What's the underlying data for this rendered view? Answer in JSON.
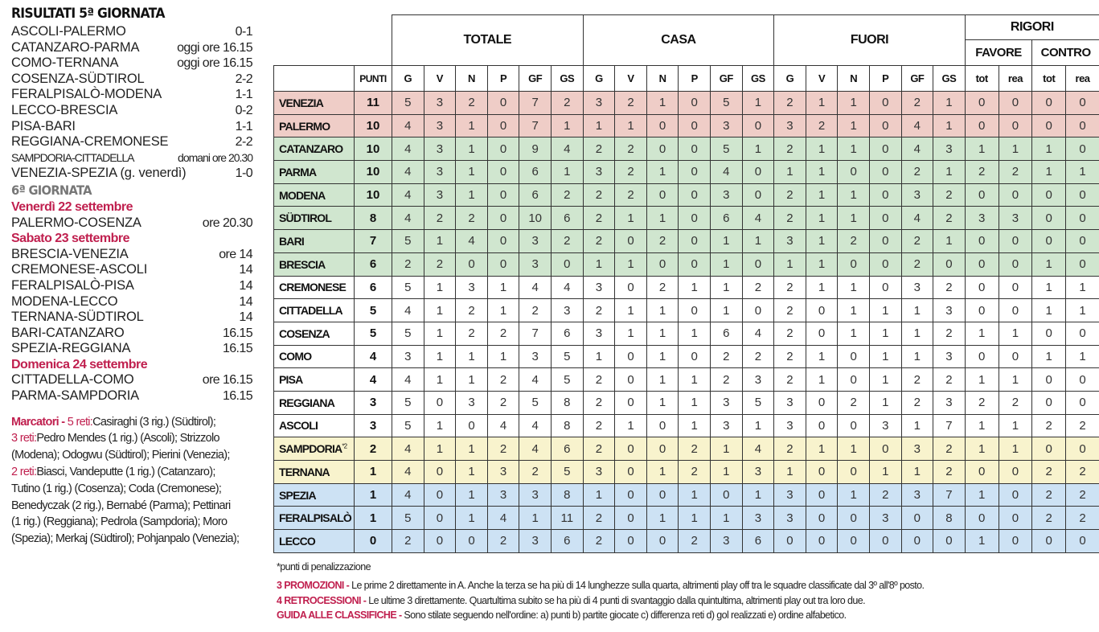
{
  "results": {
    "title": "RISULTATI 5ª GIORNATA",
    "matches": [
      {
        "match": "ASCOLI-PALERMO",
        "score": "0-1"
      },
      {
        "match": "CATANZARO-PARMA",
        "score": "oggi ore 16.15"
      },
      {
        "match": "COMO-TERNANA",
        "score": "oggi ore 16.15"
      },
      {
        "match": "COSENZA-SÜDTIROL",
        "score": "2-2"
      },
      {
        "match": "FERALPISALÒ-MODENA",
        "score": "1-1"
      },
      {
        "match": "LECCO-BRESCIA",
        "score": "0-2"
      },
      {
        "match": "PISA-BARI",
        "score": "1-1"
      },
      {
        "match": "REGGIANA-CREMONESE",
        "score": "2-2"
      },
      {
        "match": "SAMPDORIA-CITTADELLA",
        "score": "domani ore 20.30"
      },
      {
        "match": "VENEZIA-SPEZIA (g. venerdì)",
        "score": "1-0"
      }
    ]
  },
  "next": {
    "title": "6ª GIORNATA",
    "days": [
      {
        "day": "Venerdì 22 settembre",
        "matches": [
          {
            "match": "PALERMO-COSENZA",
            "time": "ore 20.30"
          }
        ]
      },
      {
        "day": "Sabato 23 settembre",
        "matches": [
          {
            "match": "BRESCIA-VENEZIA",
            "time": "ore 14"
          },
          {
            "match": "CREMONESE-ASCOLI",
            "time": "14"
          },
          {
            "match": "FERALPISALÒ-PISA",
            "time": "14"
          },
          {
            "match": "MODENA-LECCO",
            "time": "14"
          },
          {
            "match": "TERNANA-SÜDTIROL",
            "time": "14"
          },
          {
            "match": "BARI-CATANZARO",
            "time": "16.15"
          },
          {
            "match": "SPEZIA-REGGIANA",
            "time": "16.15"
          }
        ]
      },
      {
        "day": "Domenica 24 settembre",
        "matches": [
          {
            "match": "CITTADELLA-COMO",
            "time": "ore 16.15"
          },
          {
            "match": "PARMA-SAMPDORIA",
            "time": "16.15"
          }
        ]
      }
    ]
  },
  "scorers": {
    "label": "Marcatori - ",
    "groups": [
      {
        "goals": "5 reti:",
        "text": "Casiraghi (3 rig.) (Südtirol);"
      },
      {
        "goals": "3 reti:",
        "text": "Pedro Mendes (1 rig.) (Ascoli); Strizzolo (Modena); Odogwu (Südtirol); Pierini (Venezia);"
      },
      {
        "goals": "2 reti:",
        "text": "Biasci, Vandeputte (1 rig.) (Catanzaro); Tutino (1 rig.) (Cosenza); Coda (Cremonese); Benedyczak (2 rig.), Bernabé (Parma); Pettinari (1 rig.) (Reggiana); Pedrola (Sampdoria); Moro (Spezia); Merkaj (Südtirol); Pohjanpalo (Venezia);"
      }
    ]
  },
  "table": {
    "groups": [
      "TOTALE",
      "CASA",
      "FUORI",
      "RIGORI"
    ],
    "subgroups": [
      "FAVORE",
      "CONTRO"
    ],
    "columns": [
      "PUNTI",
      "G",
      "V",
      "N",
      "P",
      "GF",
      "GS",
      "G",
      "V",
      "N",
      "P",
      "GF",
      "GS",
      "G",
      "V",
      "N",
      "P",
      "GF",
      "GS",
      "tot",
      "rea",
      "tot",
      "rea"
    ],
    "zone_colors": {
      "red": "#efcdc7",
      "green": "#d0e6cf",
      "yellow": "#f8f3cd",
      "blue": "#cde2f4"
    },
    "rows": [
      {
        "team": "VENEZIA",
        "pts": 11,
        "zone": "red",
        "v": [
          5,
          3,
          2,
          0,
          7,
          2,
          3,
          2,
          1,
          0,
          5,
          1,
          2,
          1,
          1,
          0,
          2,
          1,
          0,
          0,
          0,
          0
        ]
      },
      {
        "team": "PALERMO",
        "pts": 10,
        "zone": "red",
        "v": [
          4,
          3,
          1,
          0,
          7,
          1,
          1,
          1,
          0,
          0,
          3,
          0,
          3,
          2,
          1,
          0,
          4,
          1,
          0,
          0,
          0,
          0
        ]
      },
      {
        "team": "CATANZARO",
        "pts": 10,
        "zone": "green",
        "v": [
          4,
          3,
          1,
          0,
          9,
          4,
          2,
          2,
          0,
          0,
          5,
          1,
          2,
          1,
          1,
          0,
          4,
          3,
          1,
          1,
          1,
          0
        ]
      },
      {
        "team": "PARMA",
        "pts": 10,
        "zone": "green",
        "v": [
          4,
          3,
          1,
          0,
          6,
          1,
          3,
          2,
          1,
          0,
          4,
          0,
          1,
          1,
          0,
          0,
          2,
          1,
          2,
          2,
          1,
          1
        ]
      },
      {
        "team": "MODENA",
        "pts": 10,
        "zone": "green",
        "v": [
          4,
          3,
          1,
          0,
          6,
          2,
          2,
          2,
          0,
          0,
          3,
          0,
          2,
          1,
          1,
          0,
          3,
          2,
          0,
          0,
          0,
          0
        ]
      },
      {
        "team": "SÜDTIROL",
        "pts": 8,
        "zone": "green",
        "v": [
          4,
          2,
          2,
          0,
          10,
          6,
          2,
          1,
          1,
          0,
          6,
          4,
          2,
          1,
          1,
          0,
          4,
          2,
          3,
          3,
          0,
          0
        ]
      },
      {
        "team": "BARI",
        "pts": 7,
        "zone": "green",
        "v": [
          5,
          1,
          4,
          0,
          3,
          2,
          2,
          0,
          2,
          0,
          1,
          1,
          3,
          1,
          2,
          0,
          2,
          1,
          0,
          0,
          0,
          0
        ]
      },
      {
        "team": "BRESCIA",
        "pts": 6,
        "zone": "green",
        "v": [
          2,
          2,
          0,
          0,
          3,
          0,
          1,
          1,
          0,
          0,
          1,
          0,
          1,
          1,
          0,
          0,
          2,
          0,
          0,
          0,
          1,
          0
        ]
      },
      {
        "team": "CREMONESE",
        "pts": 6,
        "zone": "",
        "v": [
          5,
          1,
          3,
          1,
          4,
          4,
          3,
          0,
          2,
          1,
          1,
          2,
          2,
          1,
          1,
          0,
          3,
          2,
          0,
          0,
          1,
          1
        ]
      },
      {
        "team": "CITTADELLA",
        "pts": 5,
        "zone": "",
        "v": [
          4,
          1,
          2,
          1,
          2,
          3,
          2,
          1,
          1,
          0,
          1,
          0,
          2,
          0,
          1,
          1,
          1,
          3,
          0,
          0,
          1,
          1
        ]
      },
      {
        "team": "COSENZA",
        "pts": 5,
        "zone": "",
        "v": [
          5,
          1,
          2,
          2,
          7,
          6,
          3,
          1,
          1,
          1,
          6,
          4,
          2,
          0,
          1,
          1,
          1,
          2,
          1,
          1,
          0,
          0
        ]
      },
      {
        "team": "COMO",
        "pts": 4,
        "zone": "",
        "v": [
          3,
          1,
          1,
          1,
          3,
          5,
          1,
          0,
          1,
          0,
          2,
          2,
          2,
          1,
          0,
          1,
          1,
          3,
          0,
          0,
          1,
          1
        ]
      },
      {
        "team": "PISA",
        "pts": 4,
        "zone": "",
        "v": [
          4,
          1,
          1,
          2,
          4,
          5,
          2,
          0,
          1,
          1,
          2,
          3,
          2,
          1,
          0,
          1,
          2,
          2,
          1,
          1,
          0,
          0
        ]
      },
      {
        "team": "REGGIANA",
        "pts": 3,
        "zone": "",
        "v": [
          5,
          0,
          3,
          2,
          5,
          8,
          2,
          0,
          1,
          1,
          3,
          5,
          3,
          0,
          2,
          1,
          2,
          3,
          2,
          2,
          0,
          0
        ]
      },
      {
        "team": "ASCOLI",
        "pts": 3,
        "zone": "",
        "v": [
          5,
          1,
          0,
          4,
          4,
          8,
          2,
          1,
          0,
          1,
          3,
          1,
          3,
          0,
          0,
          3,
          1,
          7,
          1,
          1,
          2,
          2
        ]
      },
      {
        "team": "SAMPDORIA",
        "note": "*2",
        "pts": 2,
        "zone": "yellow",
        "v": [
          4,
          1,
          1,
          2,
          4,
          6,
          2,
          0,
          0,
          2,
          1,
          4,
          2,
          1,
          1,
          0,
          3,
          2,
          1,
          1,
          0,
          0
        ]
      },
      {
        "team": "TERNANA",
        "pts": 1,
        "zone": "yellow",
        "v": [
          4,
          0,
          1,
          3,
          2,
          5,
          3,
          0,
          1,
          2,
          1,
          3,
          1,
          0,
          0,
          1,
          1,
          2,
          0,
          0,
          2,
          2
        ]
      },
      {
        "team": "SPEZIA",
        "pts": 1,
        "zone": "blue",
        "v": [
          4,
          0,
          1,
          3,
          3,
          8,
          1,
          0,
          0,
          1,
          0,
          1,
          3,
          0,
          1,
          2,
          3,
          7,
          1,
          0,
          2,
          2
        ]
      },
      {
        "team": "FERALPISALÒ",
        "pts": 1,
        "zone": "blue",
        "v": [
          5,
          0,
          1,
          4,
          1,
          11,
          2,
          0,
          1,
          1,
          1,
          3,
          3,
          0,
          0,
          3,
          0,
          8,
          0,
          0,
          2,
          2
        ]
      },
      {
        "team": "LECCO",
        "pts": 0,
        "zone": "blue",
        "v": [
          2,
          0,
          0,
          2,
          3,
          6,
          2,
          0,
          0,
          2,
          3,
          6,
          0,
          0,
          0,
          0,
          0,
          0,
          1,
          0,
          0,
          0
        ]
      }
    ]
  },
  "notes": {
    "penalty": "*punti di penalizzazione",
    "lines": [
      {
        "label": "3 PROMOZIONI - ",
        "text": "Le prime 2 direttamente in A. Anche la terza se ha più di 14 lunghezze sulla quarta, altrimenti play off tra le squadre classificate dal 3º all'8º posto."
      },
      {
        "label": "4 RETROCESSIONI - ",
        "text": "Le ultime 3 direttamente. Quartultima subito se ha più di 4 punti di svantaggio dalla quintultima, altrimenti play out tra loro due."
      },
      {
        "label": "GUIDA ALLE CLASSIFICHE - ",
        "text": " Sono stilate seguendo nell'ordine: a) punti b) partite giocate c) differenza reti d) gol realizzati e) ordine alfabetico."
      }
    ]
  }
}
